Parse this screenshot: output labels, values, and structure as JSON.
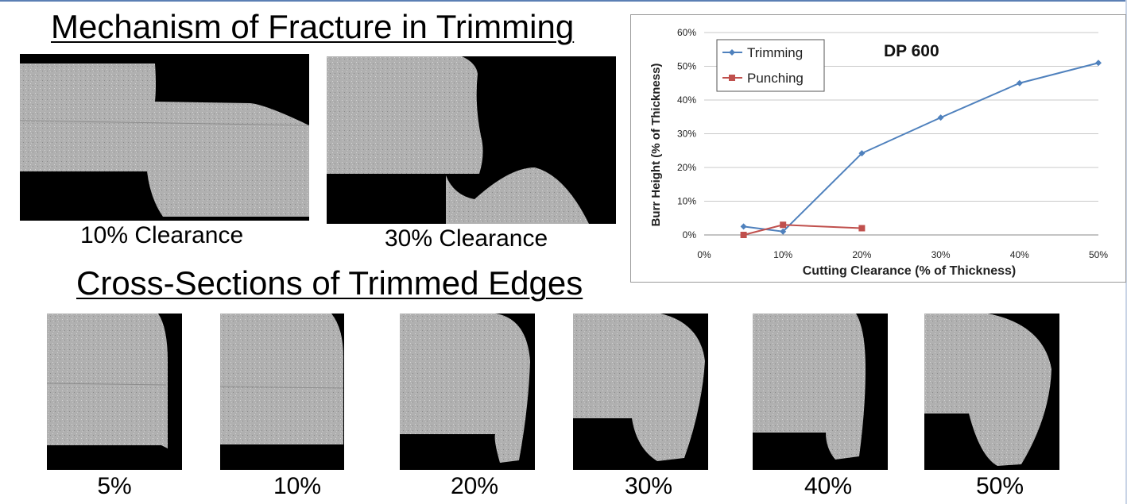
{
  "headings": {
    "mechanism": "Mechanism of Fracture in Trimming",
    "cross_sections": "Cross-Sections of Trimmed Edges"
  },
  "mechanism_images": [
    {
      "caption": "10% Clearance"
    },
    {
      "caption": "30% Clearance"
    }
  ],
  "cross_section_labels": [
    "5%",
    "10%",
    "20%",
    "30%",
    "40%",
    "50%"
  ],
  "colors": {
    "trimming": "#4f81bd",
    "punching": "#c0504d",
    "grid": "#c8c8c8",
    "metal": "#b4b4b4"
  },
  "chart_data": {
    "type": "line",
    "title": "DP 600",
    "xlabel": "Cutting Clearance (% of Thickness)",
    "ylabel": "Burr Height (% of Thickness)",
    "x_ticks": [
      "0%",
      "10%",
      "20%",
      "30%",
      "40%",
      "50%"
    ],
    "y_ticks": [
      "0%",
      "10%",
      "20%",
      "30%",
      "40%",
      "50%",
      "60%"
    ],
    "xlim": [
      0,
      50
    ],
    "ylim": [
      0,
      60
    ],
    "grid": "horizontal",
    "legend_position": "top-left",
    "series": [
      {
        "name": "Trimming",
        "marker": "diamond",
        "x": [
          5,
          10,
          20,
          30,
          40,
          50
        ],
        "y": [
          2.5,
          1,
          24.2,
          34.8,
          45,
          51
        ]
      },
      {
        "name": "Punching",
        "marker": "square",
        "x": [
          5,
          10,
          20
        ],
        "y": [
          0,
          3,
          2
        ]
      }
    ]
  }
}
